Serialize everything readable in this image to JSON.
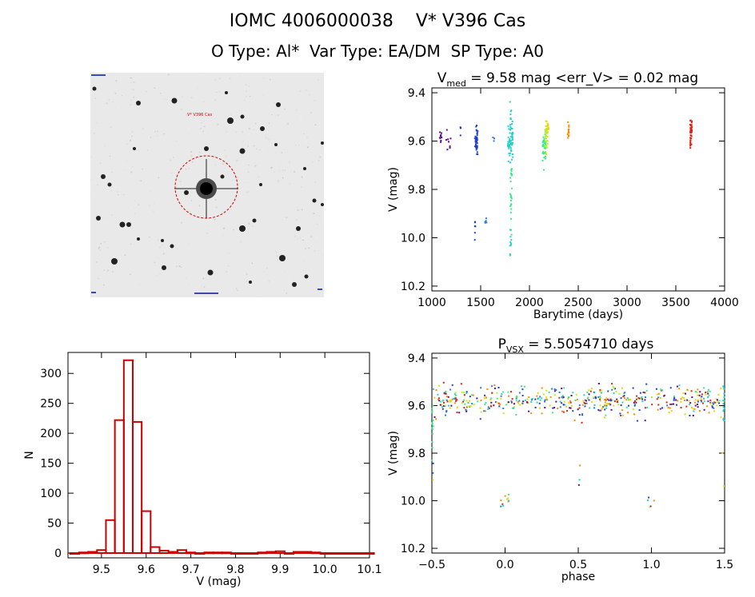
{
  "header": {
    "line1": "IOMC 4006000038    V* V396 Cas",
    "line2": "O Type: Al*  Var Type: EA/DM  SP Type: A0"
  },
  "sky_image": {
    "target_label": "V* V396 Cas",
    "marker_color": "#cc0000"
  },
  "colors": {
    "axes": "#000000",
    "histogram": "#cc0000",
    "epoch_palette": [
      "#5a0a8c",
      "#1f3fcc",
      "#2a7ad8",
      "#22d0c8",
      "#3ce88a",
      "#b8ee1a",
      "#f0d000",
      "#ff8a00",
      "#e02010"
    ]
  },
  "chart_data": [
    {
      "type": "scatter",
      "name": "light-curve",
      "title_main": "V",
      "title_sub": "med",
      "title_rest": " = 9.58 mag <err_V> = 0.02 mag",
      "xlabel": "Barytime (days)",
      "ylabel": "V (mag)",
      "xlim": [
        1000,
        4000
      ],
      "ylim": [
        10.22,
        9.38
      ],
      "xticks": [
        1000,
        1500,
        2000,
        2500,
        3000,
        3500,
        4000
      ],
      "xtick_labels": [
        "1000",
        "1500",
        "2000",
        "2500",
        "3000",
        "3500",
        "4000"
      ],
      "yticks": [
        9.4,
        9.6,
        9.8,
        10.0,
        10.2
      ],
      "ytick_labels": [
        "9.4",
        "9.6",
        "9.8",
        "10.0",
        "10.2"
      ],
      "groups": [
        {
          "x0": 1080,
          "x1": 1100,
          "yc": 9.58,
          "ys": 0.02,
          "n": 10,
          "color": "#5a0a8c"
        },
        {
          "x0": 1145,
          "x1": 1200,
          "yc": 9.6,
          "ys": 0.03,
          "n": 8,
          "color": "#5a0a8c"
        },
        {
          "x0": 1290,
          "x1": 1300,
          "yc": 9.56,
          "ys": 0.01,
          "n": 4,
          "color": "#2a3ac0"
        },
        {
          "x0": 1440,
          "x1": 1470,
          "yc": 9.6,
          "ys": 0.03,
          "n": 40,
          "color": "#1f3fcc"
        },
        {
          "x0": 1440,
          "x1": 1450,
          "yc": 9.98,
          "ys": 0.03,
          "n": 6,
          "color": "#1f3fcc"
        },
        {
          "x0": 1545,
          "x1": 1560,
          "yc": 9.93,
          "ys": 0.01,
          "n": 5,
          "color": "#2a7ad8"
        },
        {
          "x0": 1625,
          "x1": 1640,
          "yc": 9.58,
          "ys": 0.01,
          "n": 3,
          "color": "#2a7ad8"
        },
        {
          "x0": 1780,
          "x1": 1830,
          "yc": 9.6,
          "ys": 0.04,
          "n": 60,
          "color": "#22d0c8"
        },
        {
          "x0": 1800,
          "x1": 1820,
          "yc": 9.8,
          "ys": 0.08,
          "n": 25,
          "color": "#3ce88a"
        },
        {
          "x0": 1800,
          "x1": 1815,
          "yc": 10.01,
          "ys": 0.03,
          "n": 10,
          "color": "#22d0c8"
        },
        {
          "x0": 1800,
          "x1": 1815,
          "yc": 9.48,
          "ys": 0.03,
          "n": 8,
          "color": "#22d0c8"
        },
        {
          "x0": 2135,
          "x1": 2165,
          "yc": 9.62,
          "ys": 0.04,
          "n": 35,
          "color": "#3ce88a"
        },
        {
          "x0": 2160,
          "x1": 2190,
          "yc": 9.58,
          "ys": 0.03,
          "n": 30,
          "color": "#b8ee1a"
        },
        {
          "x0": 2175,
          "x1": 2195,
          "yc": 9.55,
          "ys": 0.02,
          "n": 12,
          "color": "#f0d000"
        },
        {
          "x0": 2390,
          "x1": 2405,
          "yc": 9.56,
          "ys": 0.02,
          "n": 15,
          "color": "#ff8a00"
        },
        {
          "x0": 3645,
          "x1": 3665,
          "yc": 9.57,
          "ys": 0.03,
          "n": 40,
          "color": "#e02010"
        }
      ]
    },
    {
      "type": "bar",
      "name": "histogram",
      "xlabel": "V (mag)",
      "ylabel": "N",
      "xlim": [
        9.425,
        10.1
      ],
      "ylim": [
        -8,
        335
      ],
      "xticks": [
        9.5,
        9.6,
        9.7,
        9.8,
        9.9,
        10.0,
        10.1
      ],
      "xtick_labels": [
        "9.5",
        "9.6",
        "9.7",
        "9.8",
        "9.9",
        "10.0",
        "10.1"
      ],
      "yticks": [
        0,
        50,
        100,
        150,
        200,
        250,
        300
      ],
      "ytick_labels": [
        "0",
        "50",
        "100",
        "150",
        "200",
        "250",
        "300"
      ],
      "bin_width": 0.02,
      "bin_start": 9.43,
      "values": [
        0,
        1,
        2,
        5,
        55,
        222,
        322,
        219,
        70,
        10,
        4,
        2,
        5,
        1,
        0,
        1,
        1,
        1,
        0,
        0,
        0,
        1,
        2,
        3,
        0,
        2,
        2,
        1,
        0,
        0,
        0,
        0,
        0,
        0
      ]
    },
    {
      "type": "scatter",
      "name": "phased",
      "title_main": "P",
      "title_sub": "VSX",
      "title_rest": " = 5.5054710 days",
      "xlabel": "phase",
      "ylabel": "V (mag)",
      "xlim": [
        -0.5,
        1.5
      ],
      "ylim": [
        10.22,
        9.38
      ],
      "xticks": [
        -0.5,
        0.0,
        0.5,
        1.0,
        1.5
      ],
      "xtick_labels": [
        "−0.5",
        "0.0",
        "0.5",
        "1.0",
        "1.5"
      ],
      "yticks": [
        9.4,
        9.6,
        9.8,
        10.0,
        10.2
      ],
      "ytick_labels": [
        "9.4",
        "9.6",
        "9.8",
        "10.0",
        "10.2"
      ],
      "eclipse_primary": {
        "phase": 0.0,
        "depth": 10.0
      },
      "eclipse_secondary": {
        "phase": 0.5,
        "depth": 9.98
      },
      "baseline": 9.58,
      "scatter": 0.03
    }
  ]
}
